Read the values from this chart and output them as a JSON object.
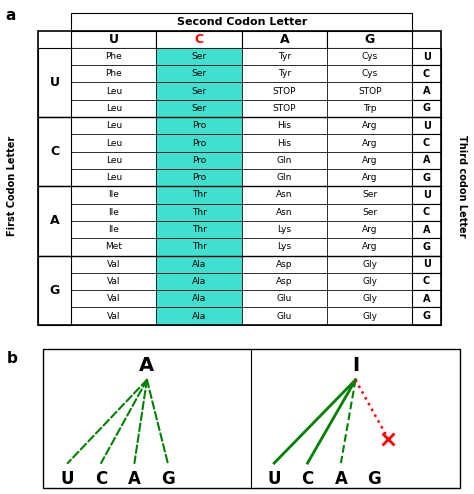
{
  "second_letters": [
    "U",
    "C",
    "A",
    "G"
  ],
  "first_letters": [
    "U",
    "C",
    "A",
    "G"
  ],
  "third_letters": [
    "U",
    "C",
    "A",
    "G"
  ],
  "table": [
    [
      "Phe",
      "Ser",
      "Tyr",
      "Cys"
    ],
    [
      "Phe",
      "Ser",
      "Tyr",
      "Cys"
    ],
    [
      "Leu",
      "Ser",
      "STOP",
      "STOP"
    ],
    [
      "Leu",
      "Ser",
      "STOP",
      "Trp"
    ],
    [
      "Leu",
      "Pro",
      "His",
      "Arg"
    ],
    [
      "Leu",
      "Pro",
      "His",
      "Arg"
    ],
    [
      "Leu",
      "Pro",
      "Gln",
      "Arg"
    ],
    [
      "Leu",
      "Pro",
      "Gln",
      "Arg"
    ],
    [
      "Ile",
      "Thr",
      "Asn",
      "Ser"
    ],
    [
      "Ile",
      "Thr",
      "Asn",
      "Ser"
    ],
    [
      "Ile",
      "Thr",
      "Lys",
      "Arg"
    ],
    [
      "Met",
      "Thr",
      "Lys",
      "Arg"
    ],
    [
      "Val",
      "Ala",
      "Asp",
      "Gly"
    ],
    [
      "Val",
      "Ala",
      "Asp",
      "Gly"
    ],
    [
      "Val",
      "Ala",
      "Glu",
      "Gly"
    ],
    [
      "Val",
      "Ala",
      "Glu",
      "Gly"
    ]
  ],
  "highlight_col": 1,
  "highlight_color": "#40E0D0",
  "label_a": "a",
  "label_b": "b",
  "first_codon_label": "First Codon Letter",
  "third_codon_label": "Third codon Letter",
  "second_codon_label": "Second Codon Letter",
  "diagram_labels_A": [
    "U",
    "C",
    "A",
    "G"
  ],
  "diagram_labels_I": [
    "U",
    "C",
    "A",
    "G"
  ]
}
